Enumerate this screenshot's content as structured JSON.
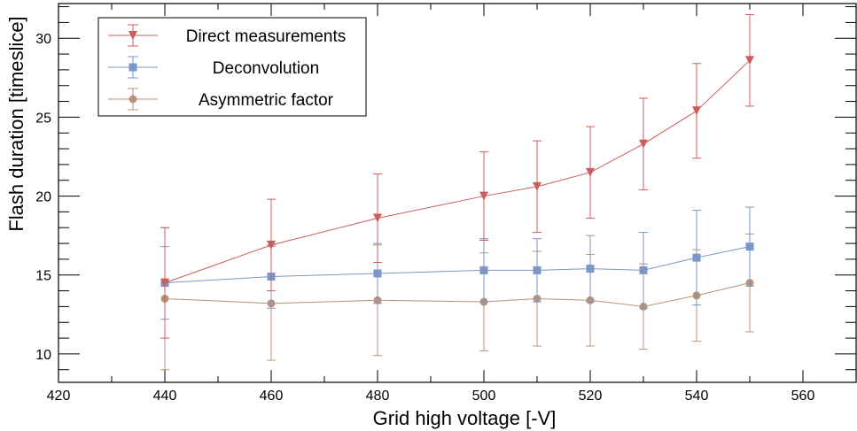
{
  "chart_data": {
    "type": "scatter",
    "title": "",
    "xlabel": "Grid high voltage [-V]",
    "ylabel": "Flash duration [timeslice]",
    "xlim": [
      420,
      570
    ],
    "ylim": [
      8.2,
      32.2
    ],
    "xticks": [
      420,
      440,
      460,
      480,
      500,
      520,
      540,
      560
    ],
    "yticks": [
      10,
      15,
      20,
      25,
      30
    ],
    "grid": false,
    "legend_position": "top-left",
    "series": [
      {
        "name": "Direct measurements",
        "color": "#cd5c5c",
        "marker": "triangle-down",
        "x": [
          440,
          460,
          480,
          500,
          510,
          520,
          530,
          540,
          550
        ],
        "y": [
          14.5,
          16.9,
          18.6,
          20.0,
          20.6,
          21.5,
          23.3,
          25.4,
          28.6
        ],
        "yerr": [
          3.5,
          2.9,
          2.8,
          2.8,
          2.9,
          2.9,
          2.9,
          3.0,
          2.9
        ]
      },
      {
        "name": "Deconvolution",
        "color": "#7b96c8",
        "marker": "square",
        "x": [
          440,
          460,
          480,
          500,
          510,
          520,
          530,
          540,
          550
        ],
        "y": [
          14.5,
          14.9,
          15.1,
          15.3,
          15.3,
          15.4,
          15.3,
          16.1,
          16.8
        ],
        "yerr": [
          2.3,
          2.0,
          1.9,
          2.0,
          2.0,
          2.1,
          2.4,
          3.0,
          2.5
        ]
      },
      {
        "name": "Asymmetric factor",
        "color": "#b89278",
        "marker": "circle",
        "x": [
          440,
          460,
          480,
          500,
          510,
          520,
          530,
          540,
          550
        ],
        "y": [
          13.5,
          13.2,
          13.4,
          13.3,
          13.5,
          13.4,
          13.0,
          13.7,
          14.5
        ],
        "yerr": [
          4.5,
          3.6,
          3.5,
          3.1,
          3.0,
          2.9,
          2.7,
          2.9,
          3.1
        ]
      }
    ]
  }
}
